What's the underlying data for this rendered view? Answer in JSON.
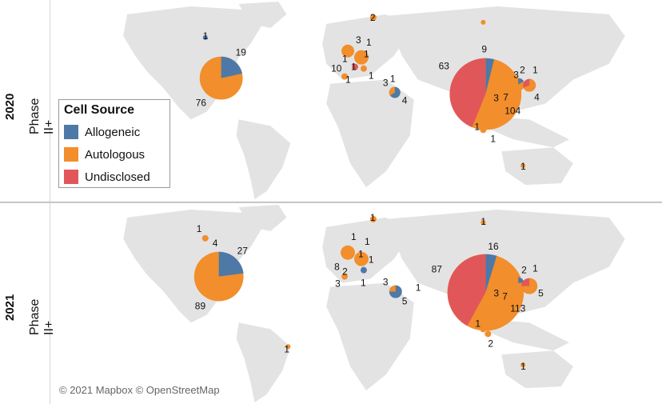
{
  "colors": {
    "allogeneic": "#4e79a7",
    "autologous": "#f28e2b",
    "undisclosed": "#e15759",
    "land": "#e3e3e3"
  },
  "legend": {
    "title": "Cell Source",
    "items": [
      {
        "label": "Allogeneic",
        "color": "#4e79a7"
      },
      {
        "label": "Autologous",
        "color": "#f28e2b"
      },
      {
        "label": "Undisclosed",
        "color": "#e15759"
      }
    ]
  },
  "attribution": "© 2021 Mapbox © OpenStreetMap",
  "panels": [
    {
      "year": "2020",
      "phase": "Phase II+"
    },
    {
      "year": "2021",
      "phase": "Phase II+"
    }
  ],
  "chart_data": [
    {
      "type": "pie-map",
      "year": "2020",
      "regions": [
        {
          "region": "North America",
          "slices": {
            "Allogeneic": 19,
            "Autologous": 76
          }
        },
        {
          "region": "East Asia (China)",
          "slices": {
            "Allogeneic": 9,
            "Autologous": 104,
            "Undisclosed": 63
          }
        },
        {
          "region": "Japan",
          "slices": {
            "Allogeneic": 3,
            "Autologous": 2
          }
        },
        {
          "region": "South Korea",
          "slices": {
            "Allogeneic": 1,
            "Autologous": 4
          }
        },
        {
          "region": "Israel",
          "slices": {
            "Allogeneic": 4,
            "Autologous": 3
          }
        }
      ]
    },
    {
      "type": "pie-map",
      "year": "2021",
      "regions": [
        {
          "region": "North America",
          "slices": {
            "Allogeneic": 27,
            "Autologous": 89
          }
        },
        {
          "region": "East Asia (China)",
          "slices": {
            "Allogeneic": 16,
            "Autologous": 113,
            "Undisclosed": 87
          }
        },
        {
          "region": "Japan",
          "slices": {
            "Allogeneic": 2,
            "Autologous": 1
          }
        },
        {
          "region": "South Korea",
          "slices": {
            "Allogeneic": 1,
            "Autologous": 5
          }
        },
        {
          "region": "Israel",
          "slices": {
            "Allogeneic": 5,
            "Autologous": 3
          }
        }
      ]
    }
  ],
  "labels": {
    "p2020": [
      "19",
      "76",
      "1",
      "2",
      "3",
      "1",
      "1",
      "10",
      "1",
      "1",
      "1",
      "1",
      "3",
      "4",
      "1",
      "63",
      "9",
      "3",
      "2",
      "1",
      "3",
      "7",
      "104",
      "4",
      "1",
      "1",
      "1"
    ],
    "p2021": [
      "1",
      "4",
      "27",
      "89",
      "1",
      "8",
      "1",
      "1",
      "1",
      "3",
      "1",
      "2",
      "1",
      "3",
      "5",
      "1",
      "1",
      "87",
      "16",
      "2",
      "1",
      "3",
      "7",
      "113",
      "5",
      "1",
      "2",
      "1",
      "1"
    ]
  }
}
